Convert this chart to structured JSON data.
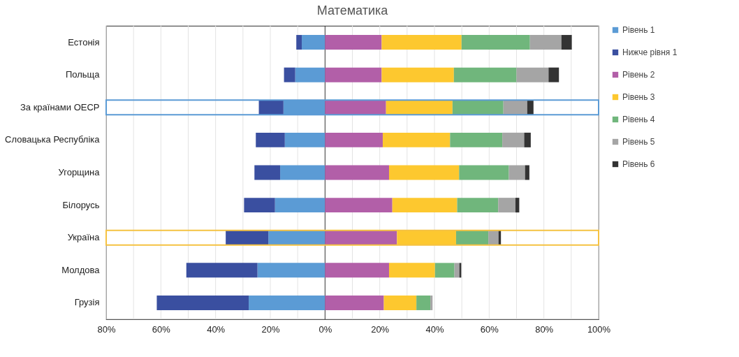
{
  "chart_data": {
    "type": "bar",
    "orientation": "horizontal",
    "stacked": true,
    "title": "Математика",
    "categories": [
      "Естонія",
      "Польща",
      "За країнами ОЕСР",
      "Словацька Республіка",
      "Угорщина",
      "Білорусь",
      "Україна",
      "Молдова",
      "Грузія"
    ],
    "series": [
      {
        "name": "Рівень 1",
        "color": "#5b9bd5",
        "values": [
          -8.5,
          -10.9,
          -15.2,
          -14.7,
          -16.4,
          -18.3,
          -20.7,
          -24.7,
          -27.9
        ]
      },
      {
        "name": "Нижче рівня 1",
        "color": "#3a4fa0",
        "values": [
          -2.0,
          -4.1,
          -9.0,
          -10.6,
          -9.4,
          -11.3,
          -15.6,
          -26.0,
          -33.6
        ]
      },
      {
        "name": "Рівень 2",
        "color": "#b25fa8",
        "values": [
          20.7,
          20.7,
          22.3,
          21.1,
          23.4,
          24.6,
          26.3,
          23.4,
          21.5
        ]
      },
      {
        "name": "Рівень 3",
        "color": "#fdc82f",
        "values": [
          29.2,
          26.4,
          24.3,
          24.6,
          25.6,
          23.7,
          21.6,
          16.8,
          11.9
        ]
      },
      {
        "name": "Рівень 4",
        "color": "#70b67c",
        "values": [
          25.0,
          22.9,
          18.6,
          19.1,
          18.2,
          15.0,
          11.8,
          7.1,
          5.1
        ]
      },
      {
        "name": "Рівень 5",
        "color": "#a5a5a5",
        "values": [
          11.5,
          11.7,
          8.7,
          8.0,
          5.9,
          6.3,
          3.7,
          1.8,
          0.8
        ]
      },
      {
        "name": "Рівень 6",
        "color": "#333333",
        "values": [
          3.8,
          3.8,
          2.3,
          2.4,
          1.6,
          1.4,
          0.9,
          0.7,
          null
        ]
      }
    ],
    "xlim": [
      -80,
      100
    ],
    "xticks": [
      {
        "value": -80,
        "label": "80%"
      },
      {
        "value": -70,
        "label": null
      },
      {
        "value": -60,
        "label": "60%"
      },
      {
        "value": -50,
        "label": null
      },
      {
        "value": -40,
        "label": "40%"
      },
      {
        "value": -30,
        "label": null
      },
      {
        "value": -20,
        "label": "20%"
      },
      {
        "value": -10,
        "label": null
      },
      {
        "value": 0,
        "label": "0%"
      },
      {
        "value": 10,
        "label": null
      },
      {
        "value": 20,
        "label": "20%"
      },
      {
        "value": 30,
        "label": null
      },
      {
        "value": 40,
        "label": "40%"
      },
      {
        "value": 50,
        "label": null
      },
      {
        "value": 60,
        "label": "60%"
      },
      {
        "value": 70,
        "label": null
      },
      {
        "value": 80,
        "label": "80%"
      },
      {
        "value": 90,
        "label": null
      },
      {
        "value": 100,
        "label": "100%"
      }
    ],
    "grid": "x",
    "legend": "right"
  }
}
